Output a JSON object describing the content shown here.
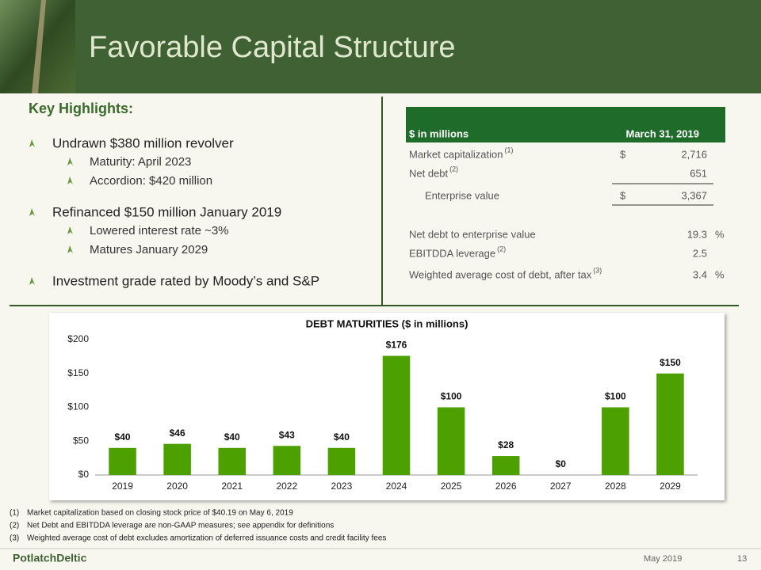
{
  "header": {
    "title": "Favorable Capital Structure"
  },
  "highlights": {
    "title": "Key Highlights:",
    "items": [
      {
        "text": "Undrawn $380 million revolver",
        "sub": [
          "Maturity: April 2023",
          "Accordion:  $420 million"
        ]
      },
      {
        "text": "Refinanced $150 million January 2019",
        "sub": [
          "Lowered interest rate ~3%",
          "Matures January 2029"
        ]
      },
      {
        "text": "Investment grade rated by Moody’s and S&P",
        "sub": []
      }
    ]
  },
  "table": {
    "header": [
      "$ in millions",
      "March 31, 2019"
    ],
    "rows": [
      {
        "label": "Market capitalization",
        "note": "(1)",
        "currency": "$",
        "value": "2,716"
      },
      {
        "label": "Net debt",
        "note": "(2)",
        "value": "651"
      },
      {
        "label": "Enterprise value",
        "currency": "$",
        "value": "3,367"
      },
      {
        "label": "Net debt to enterprise value",
        "value": "19.3",
        "unit": "%"
      },
      {
        "label": "EBITDDA leverage",
        "note": "(2)",
        "value": "2.5"
      },
      {
        "label": "Weighted average cost of debt, after tax",
        "note": "(3)",
        "value": "3.4",
        "unit": "%"
      }
    ]
  },
  "chart_data": {
    "type": "bar",
    "title": "DEBT MATURITIES ($ in millions)",
    "categories": [
      "2019",
      "2020",
      "2021",
      "2022",
      "2023",
      "2024",
      "2025",
      "2026",
      "2027",
      "2028",
      "2029"
    ],
    "values": [
      40,
      46,
      40,
      43,
      40,
      176,
      100,
      28,
      0,
      100,
      150
    ],
    "value_labels": [
      "$40",
      "$46",
      "$40",
      "$43",
      "$40",
      "$176",
      "$100",
      "$28",
      "$0",
      "$100",
      "$150"
    ],
    "color": "#4ca000",
    "ylim": [
      0,
      200
    ],
    "yticks": [
      {
        "value": 0,
        "label": "$0"
      },
      {
        "value": 50,
        "label": "$50"
      },
      {
        "value": 100,
        "label": "$100"
      },
      {
        "value": 150,
        "label": "$150"
      },
      {
        "value": 200,
        "label": "$200"
      }
    ],
    "grid": false
  },
  "footnotes": [
    {
      "mark": "(1)",
      "text": "Market capitalization  based  on closing stock price of $40.19  on May 6, 2019"
    },
    {
      "mark": "(2)",
      "text": "Net Debt and  EBITDDA leverage  are non-GAAP measures;   see appendix  for definitions"
    },
    {
      "mark": "(3)",
      "text": "Weighted  average  cost of debt excludes amortization  of deferred  issuance  costs and  credit facility fees"
    }
  ],
  "footer": {
    "logo": "PotlatchDeltic",
    "date": "May 2019",
    "page": "13"
  }
}
